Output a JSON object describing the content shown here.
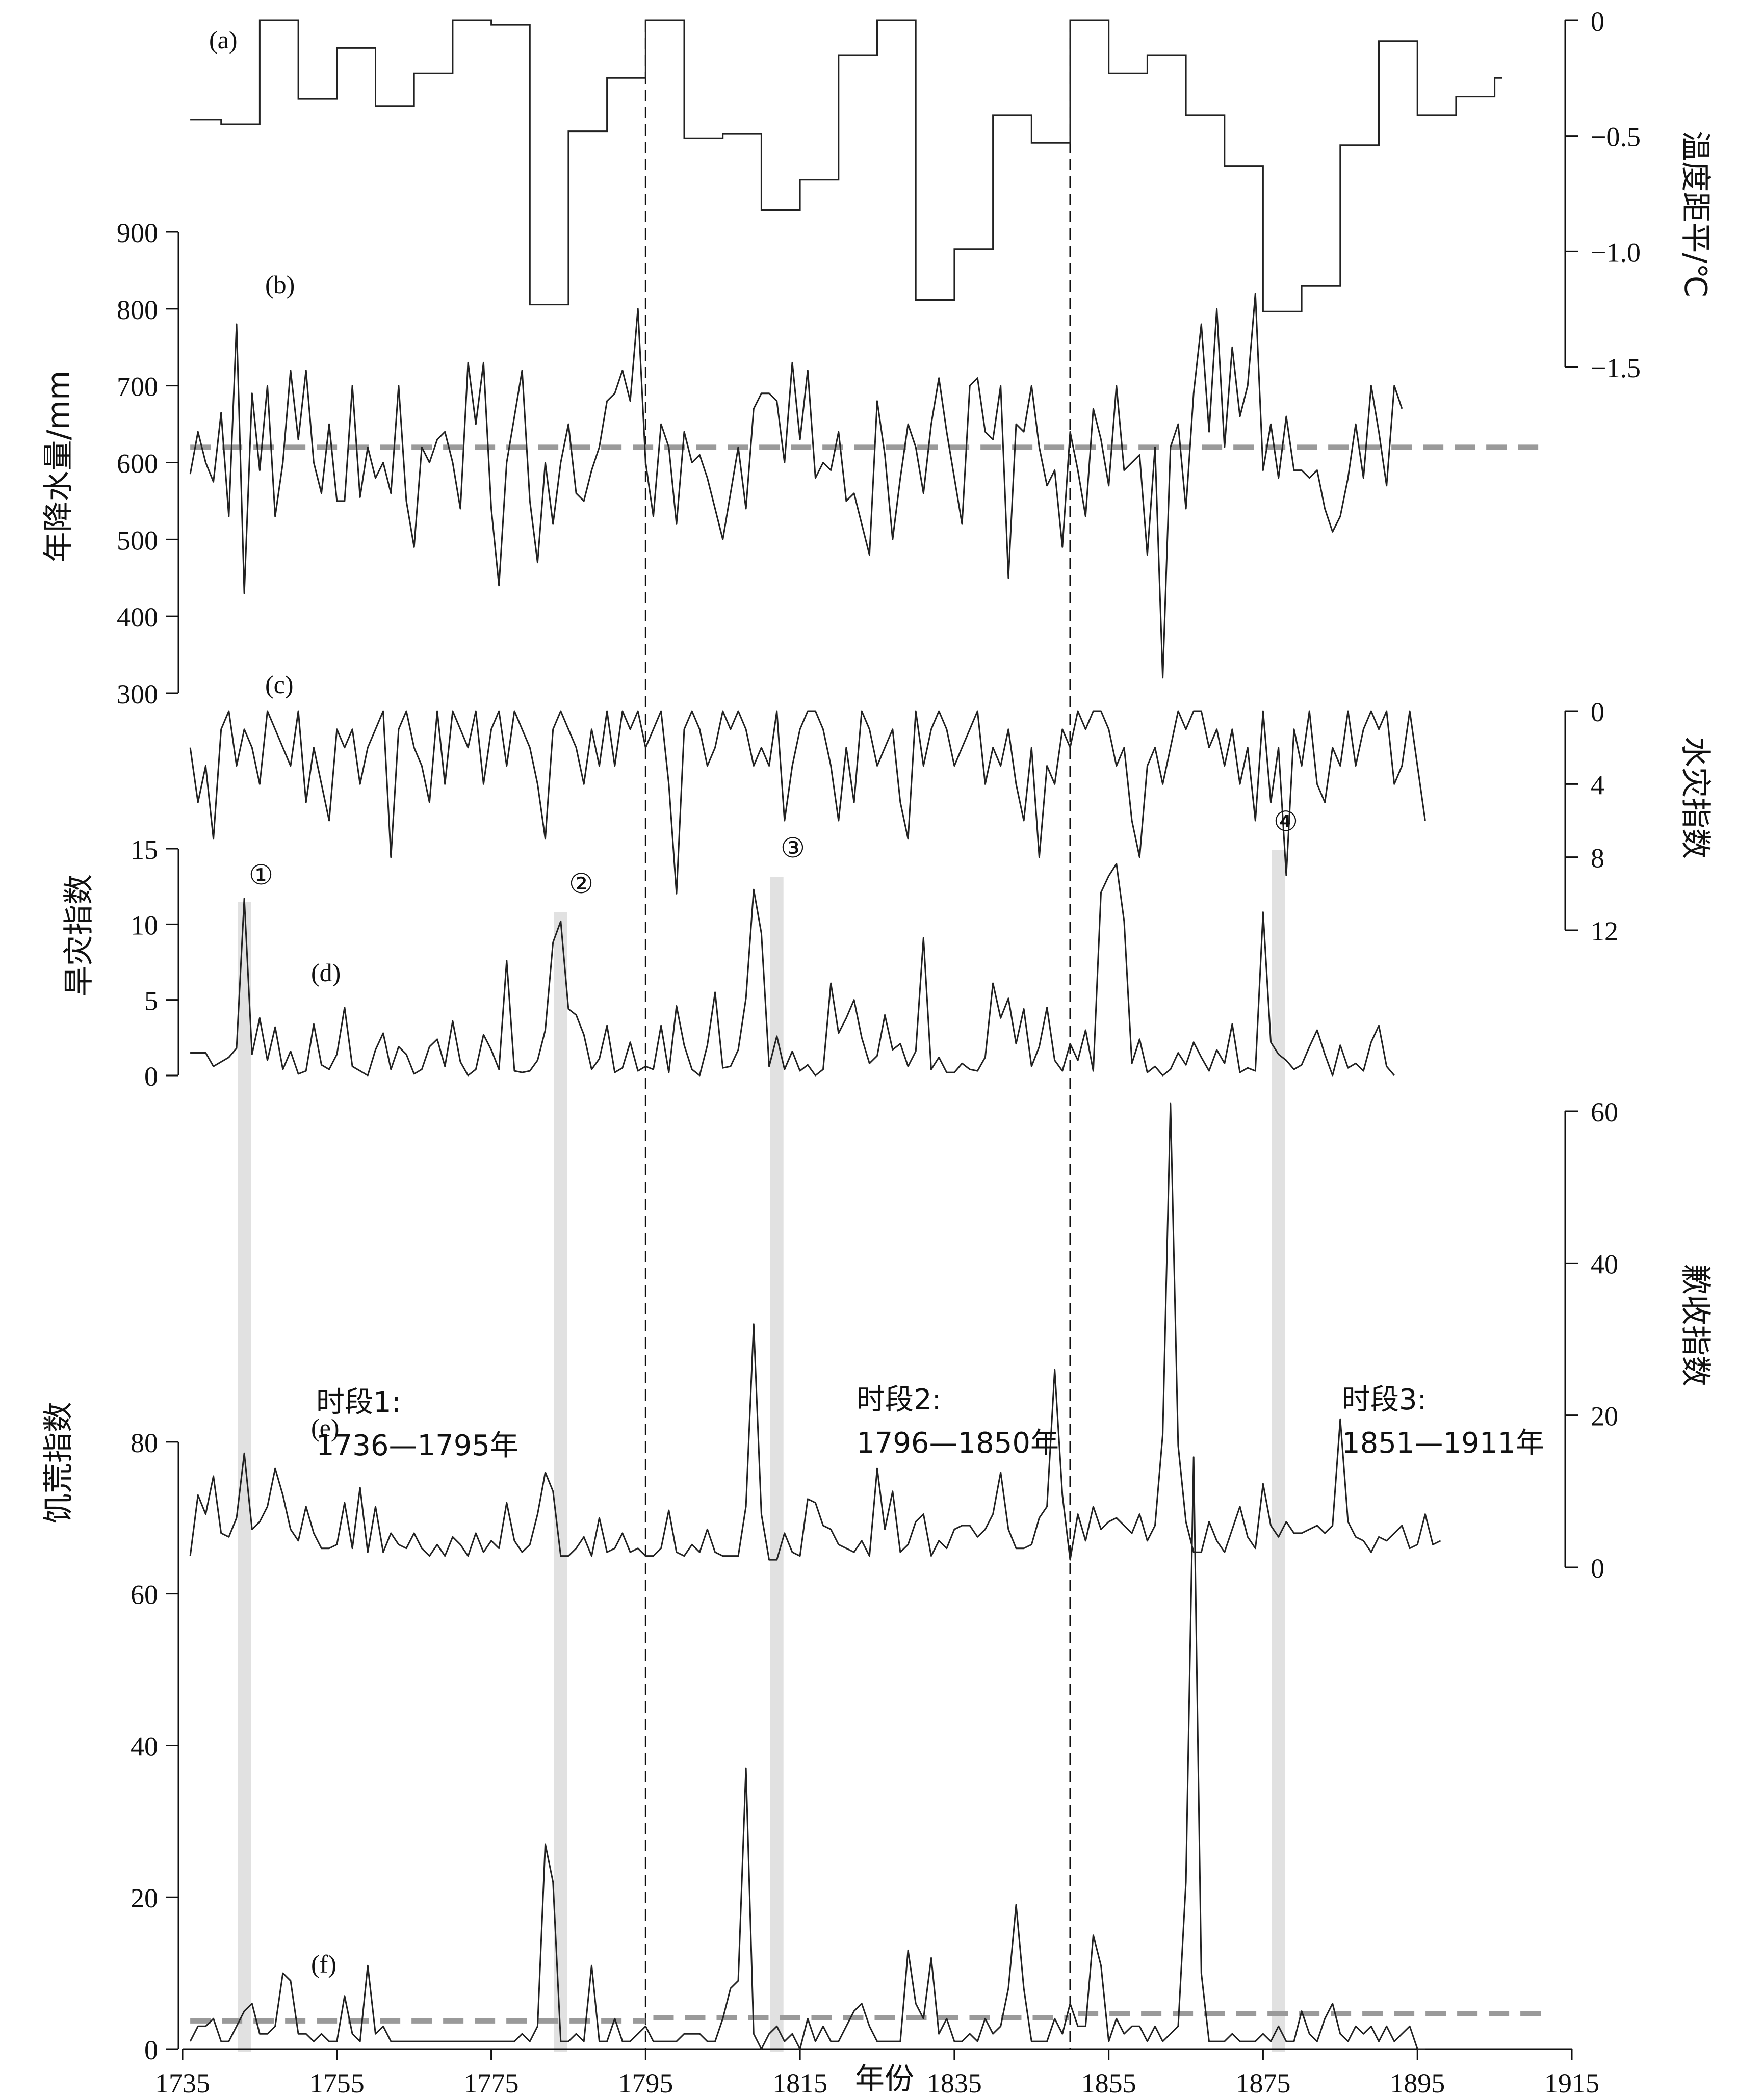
{
  "colors": {
    "series": "#222222",
    "mean_line": "#9a9a9a",
    "highlight_band": "#dcdcdc",
    "peak_series": "#8a8a8a",
    "axes": "#111111"
  },
  "chart_data": [
    {
      "id": "a",
      "type": "line",
      "panel_label": "(a)",
      "ylabel": "温度距平/℃",
      "axis_side": "right",
      "step": true,
      "ylim": [
        -1.5,
        0
      ],
      "yticks": [
        0,
        -0.5,
        -1.0,
        -1.5
      ],
      "ytick_labels": [
        "0",
        "−0.5",
        "−1.0",
        "−1.5"
      ],
      "x": [
        1736,
        1740,
        1745,
        1750,
        1755,
        1760,
        1765,
        1770,
        1775,
        1780,
        1785,
        1790,
        1795,
        1800,
        1805,
        1810,
        1815,
        1820,
        1825,
        1830,
        1835,
        1840,
        1845,
        1850,
        1855,
        1860,
        1865,
        1870,
        1875,
        1880,
        1885,
        1890,
        1895,
        1900,
        1905
      ],
      "values": [
        -0.43,
        -0.45,
        0,
        -0.34,
        -0.12,
        -0.37,
        -0.23,
        0,
        -0.02,
        -1.23,
        -0.48,
        -0.25,
        0,
        -0.51,
        -0.49,
        -0.82,
        -0.69,
        -0.15,
        0,
        -1.21,
        -0.99,
        -0.41,
        -0.53,
        0,
        -0.23,
        -0.15,
        -0.41,
        -0.63,
        -1.26,
        -1.15,
        -0.54,
        -0.09,
        -0.41,
        -0.33,
        -0.25
      ],
      "x_end": 1906
    },
    {
      "id": "b",
      "type": "line",
      "panel_label": "(b)",
      "ylabel": "年降水量/mm",
      "axis_side": "left",
      "ylim": [
        300,
        900
      ],
      "yticks": [
        300,
        400,
        500,
        600,
        700,
        800,
        900
      ],
      "mean": 620,
      "x_start": 1736,
      "values": [
        585,
        640,
        600,
        575,
        665,
        530,
        780,
        430,
        690,
        590,
        700,
        530,
        600,
        720,
        630,
        720,
        600,
        560,
        650,
        550,
        550,
        700,
        555,
        620,
        580,
        600,
        560,
        700,
        550,
        490,
        620,
        600,
        630,
        640,
        600,
        540,
        730,
        650,
        730,
        540,
        440,
        600,
        660,
        720,
        550,
        470,
        600,
        520,
        600,
        650,
        560,
        550,
        590,
        620,
        680,
        690,
        720,
        680,
        800,
        600,
        530,
        650,
        620,
        520,
        640,
        600,
        610,
        580,
        540,
        500,
        560,
        620,
        540,
        670,
        690,
        690,
        680,
        600,
        730,
        630,
        720,
        580,
        600,
        590,
        640,
        550,
        560,
        520,
        480,
        680,
        610,
        500,
        580,
        650,
        620,
        560,
        650,
        710,
        640,
        580,
        520,
        700,
        710,
        640,
        630,
        700,
        450,
        650,
        640,
        700,
        620,
        570,
        590,
        490,
        640,
        590,
        530,
        670,
        630,
        570,
        700,
        590,
        600,
        610,
        480,
        620,
        320,
        620,
        650,
        540,
        690,
        780,
        640,
        800,
        620,
        750,
        660,
        700,
        820,
        590,
        650,
        580,
        660,
        590,
        590,
        580,
        590,
        540,
        510,
        530,
        580,
        650,
        580,
        700,
        640,
        570,
        700,
        670
      ]
    },
    {
      "id": "c",
      "type": "line",
      "panel_label": "(c)",
      "ylabel": "水灾指数",
      "axis_side": "right",
      "invert": true,
      "ylim": [
        0,
        12
      ],
      "yticks": [
        0,
        4,
        8,
        12
      ],
      "x_start": 1736,
      "values": [
        2,
        5,
        3,
        7,
        1,
        0,
        3,
        1,
        2,
        4,
        0,
        1,
        2,
        3,
        0,
        5,
        2,
        4,
        6,
        1,
        2,
        1,
        4,
        2,
        1,
        0,
        8,
        1,
        0,
        2,
        3,
        5,
        0,
        4,
        0,
        1,
        2,
        0,
        4,
        1,
        0,
        3,
        0,
        1,
        2,
        4,
        7,
        1,
        0,
        1,
        2,
        4,
        1,
        3,
        0,
        3,
        0,
        1,
        0,
        2,
        1,
        0,
        4,
        10,
        1,
        0,
        1,
        3,
        2,
        0,
        1,
        0,
        1,
        3,
        2,
        3,
        0,
        6,
        3,
        1,
        0,
        0,
        1,
        3,
        6,
        2,
        5,
        0,
        1,
        3,
        2,
        1,
        5,
        7,
        0,
        3,
        1,
        0,
        1,
        3,
        2,
        1,
        0,
        4,
        2,
        3,
        1,
        4,
        6,
        2,
        8,
        3,
        4,
        1,
        2,
        0,
        1,
        0,
        0,
        1,
        3,
        2,
        6,
        8,
        3,
        2,
        4,
        2,
        0,
        1,
        0,
        0,
        2,
        1,
        3,
        1,
        4,
        2,
        6,
        0,
        5,
        2,
        9,
        1,
        3,
        0,
        4,
        5,
        2,
        3,
        0,
        3,
        1,
        0,
        1,
        0,
        4,
        3,
        0,
        3,
        6
      ]
    },
    {
      "id": "d",
      "type": "line",
      "panel_label": "(d)",
      "ylabel": "旱灾指数",
      "axis_side": "left",
      "ylim": [
        0,
        15
      ],
      "yticks": [
        0,
        5,
        10,
        15
      ],
      "x_start": 1736,
      "values": [
        1.5,
        1.5,
        1.5,
        0.6,
        0.9,
        1.2,
        1.8,
        11.7,
        1.4,
        3.8,
        1.0,
        3.2,
        0.4,
        1.6,
        0.1,
        0.3,
        3.4,
        0.7,
        0.4,
        1.4,
        4.5,
        0.6,
        0.3,
        0.0,
        1.7,
        2.8,
        0.4,
        1.9,
        1.4,
        0.1,
        0.4,
        1.9,
        2.4,
        0.6,
        3.6,
        0.9,
        0.0,
        0.4,
        2.7,
        1.7,
        0.4,
        7.6,
        0.3,
        0.2,
        0.3,
        1.0,
        3.0,
        8.8,
        10.2,
        4.4,
        4.0,
        2.7,
        0.4,
        1.1,
        3.3,
        0.2,
        0.5,
        2.2,
        0.3,
        0.6,
        0.4,
        3.3,
        0.2,
        4.6,
        2.0,
        0.4,
        0.0,
        2.0,
        5.5,
        0.5,
        0.6,
        1.7,
        5.1,
        12.3,
        9.4,
        0.6,
        2.6,
        0.4,
        1.6,
        0.3,
        0.7,
        0.0,
        0.4,
        6.1,
        2.8,
        3.8,
        5.0,
        2.5,
        0.8,
        1.3,
        4.0,
        1.7,
        2.1,
        0.6,
        1.6,
        9.1,
        0.4,
        1.2,
        0.2,
        0.2,
        0.8,
        0.4,
        0.3,
        1.2,
        6.1,
        3.8,
        5.1,
        2.1,
        4.4,
        0.6,
        1.9,
        4.5,
        1.0,
        0.3,
        2.1,
        1.0,
        3.0,
        0.3,
        12.1,
        13.2,
        14.0,
        10.2,
        0.8,
        2.4,
        0.2,
        0.6,
        0.0,
        0.4,
        1.5,
        0.7,
        2.2,
        1.2,
        0.3,
        1.7,
        0.8,
        3.4,
        0.2,
        0.5,
        0.3,
        10.8,
        2.2,
        1.4,
        1.0,
        0.4,
        0.7,
        1.9,
        3.0,
        1.4,
        0.0,
        2.0,
        0.5,
        0.8,
        0.3,
        2.2,
        3.3,
        0.6,
        0.0
      ]
    },
    {
      "id": "e",
      "type": "line",
      "panel_label": "(e)",
      "ylabel": "歉收指数",
      "axis_side": "right",
      "ylim": [
        0,
        60
      ],
      "yticks": [
        0,
        20,
        40,
        60
      ],
      "x_start": 1736,
      "values": [
        1.5,
        9.5,
        7.0,
        12.0,
        4.5,
        4.0,
        6.5,
        15.0,
        5.0,
        6.0,
        8.0,
        13.0,
        9.5,
        5.0,
        3.5,
        8.0,
        4.5,
        2.5,
        2.5,
        3.0,
        8.5,
        2.5,
        10.5,
        2.0,
        8.0,
        2.0,
        4.5,
        3.0,
        2.5,
        4.5,
        2.5,
        1.5,
        3.0,
        1.5,
        4.0,
        3.0,
        1.5,
        4.5,
        2.0,
        3.5,
        2.5,
        8.5,
        3.5,
        2.0,
        3.0,
        7.0,
        12.5,
        10.0,
        1.5,
        1.5,
        2.5,
        4.0,
        1.5,
        6.5,
        2.0,
        2.5,
        4.5,
        2.0,
        2.5,
        1.5,
        1.5,
        2.5,
        7.5,
        2.0,
        1.5,
        3.0,
        2.0,
        5.0,
        2.0,
        1.5,
        1.5,
        1.5,
        8.0,
        32.0,
        7.0,
        1.0,
        1.0,
        4.5,
        2.0,
        1.5,
        9.0,
        8.5,
        5.5,
        5.0,
        3.0,
        2.5,
        2.0,
        3.5,
        1.5,
        13.0,
        5.0,
        10.0,
        2.0,
        3.0,
        6.0,
        7.0,
        1.5,
        3.5,
        2.5,
        5.0,
        5.5,
        5.5,
        4.0,
        5.0,
        7.0,
        12.5,
        5.0,
        2.5,
        2.5,
        3.0,
        6.5,
        8.0,
        26.0,
        9.5,
        1.0,
        7.0,
        3.5,
        8.0,
        5.0,
        6.0,
        6.5,
        5.5,
        4.5,
        7.0,
        3.5,
        5.5,
        17.5,
        61.0,
        16.0,
        6.0,
        2.0,
        2.0,
        6.0,
        3.5,
        2.0,
        5.0,
        8.0,
        4.0,
        2.5,
        11.0,
        5.5,
        4.0,
        6.0,
        4.5,
        4.5,
        5.0,
        5.5,
        4.5,
        5.5,
        19.5,
        6.0,
        4.0,
        3.5,
        2.0,
        4.0,
        3.5,
        4.5,
        5.5,
        2.5,
        3.0,
        7.0,
        3.0,
        3.5
      ]
    },
    {
      "id": "f",
      "type": "line",
      "panel_label": "(f)",
      "ylabel": "饥荒指数",
      "axis_side": "left",
      "ylim": [
        0,
        90
      ],
      "yticks": [
        0,
        20,
        40,
        60,
        80
      ],
      "xlabel": "年份",
      "xlim": [
        1735,
        1915
      ],
      "xticks": [
        1735,
        1755,
        1775,
        1795,
        1815,
        1835,
        1855,
        1875,
        1895,
        1915
      ],
      "means": [
        {
          "x0": 1736,
          "x1": 1795,
          "value": 3.7
        },
        {
          "x0": 1796,
          "x1": 1850,
          "value": 4.1
        },
        {
          "x0": 1851,
          "x1": 1911,
          "value": 4.7
        }
      ],
      "x_start": 1736,
      "values": [
        1,
        3,
        3,
        4,
        1,
        1,
        3,
        5,
        6,
        2,
        2,
        3,
        10,
        9,
        2,
        2,
        1,
        2,
        1,
        1,
        7,
        2,
        1,
        11,
        2,
        3,
        1,
        1,
        1,
        1,
        1,
        1,
        1,
        1,
        1,
        1,
        1,
        1,
        1,
        1,
        1,
        1,
        1,
        2,
        1,
        3,
        27,
        22,
        1,
        1,
        2,
        1,
        11,
        1,
        1,
        4,
        1,
        1,
        2,
        3,
        1,
        1,
        1,
        1,
        2,
        2,
        2,
        1,
        1,
        4,
        8,
        9,
        37,
        2,
        0,
        2,
        3,
        1,
        2,
        0,
        4,
        1,
        3,
        1,
        1,
        3,
        5,
        6,
        3,
        1,
        1,
        1,
        1,
        13,
        6,
        4,
        12,
        2,
        4,
        1,
        1,
        2,
        1,
        4,
        2,
        3,
        8,
        19,
        8,
        1,
        1,
        1,
        4,
        2,
        6,
        3,
        3,
        15,
        11,
        1,
        4,
        2,
        3,
        3,
        1,
        3,
        1,
        2,
        3,
        22,
        78,
        10,
        1,
        1,
        1,
        2,
        1,
        1,
        1,
        2,
        1,
        3,
        1,
        1,
        5,
        2,
        1,
        4,
        6,
        2,
        1,
        3,
        2,
        3,
        1,
        3,
        1,
        2,
        3,
        0,
        0
      ]
    }
  ],
  "highlights": [
    {
      "marker": "①",
      "year": 1743
    },
    {
      "marker": "②",
      "year": 1784
    },
    {
      "marker": "③",
      "year": 1812
    },
    {
      "marker": "④",
      "year": 1877
    }
  ],
  "period_dividers": [
    1795,
    1850
  ],
  "periods": [
    {
      "name": "时段1:",
      "range": "1736—1795年"
    },
    {
      "name": "时段2:",
      "range": "1796—1850年"
    },
    {
      "name": "时段3:",
      "range": "1851—1911年"
    }
  ]
}
